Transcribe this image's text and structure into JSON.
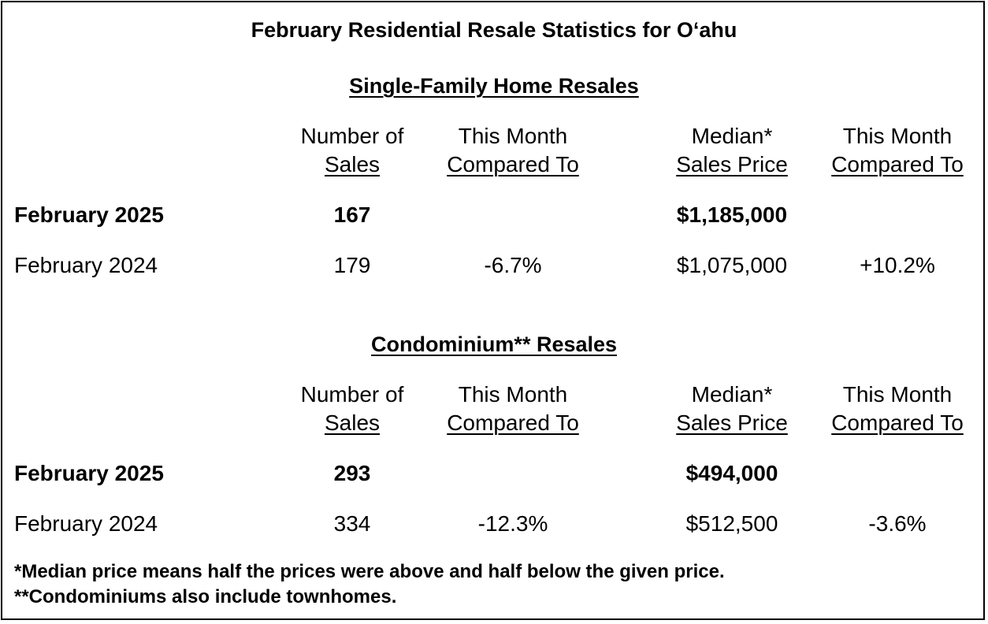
{
  "title": "February Residential Resale Statistics for O‘ahu",
  "sections": [
    {
      "heading": "Single-Family Home Resales",
      "headers": {
        "sales_line1": "Number of",
        "sales_line2": "Sales",
        "cmp1_line1": "This Month",
        "cmp1_line2": "Compared To",
        "price_line1": "Median*",
        "price_line2": "Sales Price",
        "cmp2_line1": "This Month",
        "cmp2_line2": "Compared To"
      },
      "rows": [
        {
          "label": "February 2025",
          "sales": "167",
          "sales_change": "",
          "price": "$1,185,000",
          "price_change": ""
        },
        {
          "label": "February 2024",
          "sales": "179",
          "sales_change": "-6.7%",
          "price": "$1,075,000",
          "price_change": "+10.2%"
        }
      ]
    },
    {
      "heading": "Condominium** Resales",
      "headers": {
        "sales_line1": "Number of",
        "sales_line2": "Sales",
        "cmp1_line1": "This Month",
        "cmp1_line2": "Compared To",
        "price_line1": "Median*",
        "price_line2": "Sales Price",
        "cmp2_line1": "This Month",
        "cmp2_line2": "Compared To"
      },
      "rows": [
        {
          "label": "February 2025",
          "sales": "293",
          "sales_change": "",
          "price": "$494,000",
          "price_change": ""
        },
        {
          "label": "February 2024",
          "sales": "334",
          "sales_change": "-12.3%",
          "price": "$512,500",
          "price_change": "-3.6%"
        }
      ]
    }
  ],
  "footnotes": [
    "*Median price means half the prices were above and half below the given price.",
    "**Condominiums also include townhomes."
  ]
}
